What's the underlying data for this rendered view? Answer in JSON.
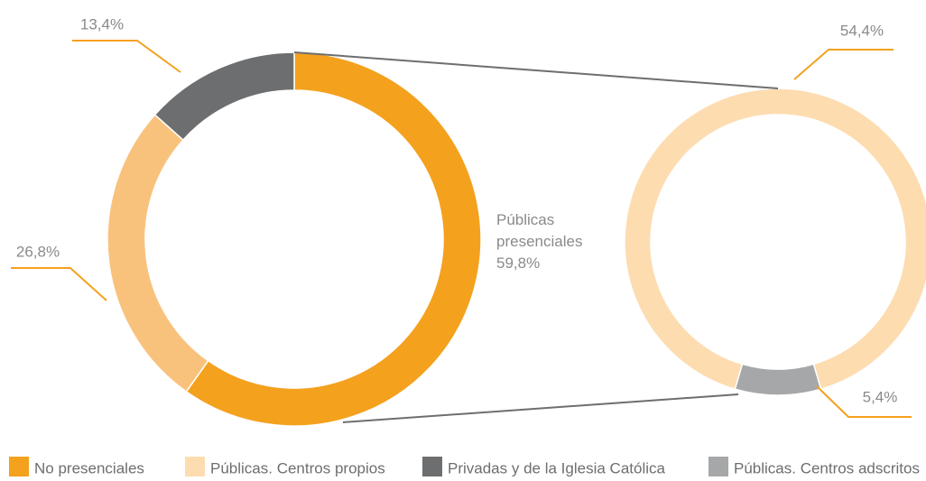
{
  "chart_data": [
    {
      "type": "pie",
      "categories": [
        "Públicas presenciales",
        null,
        null
      ],
      "values": [
        59.8,
        26.8,
        13.4
      ],
      "value_labels": [
        "59,8%",
        "26,8%",
        "13,4%"
      ],
      "colors": [
        "#f4a11e",
        "#f9c27c",
        "#6d6e70"
      ]
    },
    {
      "type": "pie",
      "categories": [
        null,
        null
      ],
      "values": [
        54.4,
        5.4
      ],
      "value_labels": [
        "54,4%",
        "5,4%"
      ],
      "colors": [
        "#fddcb0",
        "#a6a7a9"
      ]
    }
  ],
  "legend": [
    {
      "label": "No presenciales",
      "color": "#f4a11e"
    },
    {
      "label": "Públicas. Centros propios",
      "color": "#fddcb0"
    },
    {
      "label": "Privadas y de la Iglesia Católica",
      "color": "#6d6e70"
    },
    {
      "label": "Públicas. Centros adscritos",
      "color": "#a6a7a9"
    }
  ]
}
